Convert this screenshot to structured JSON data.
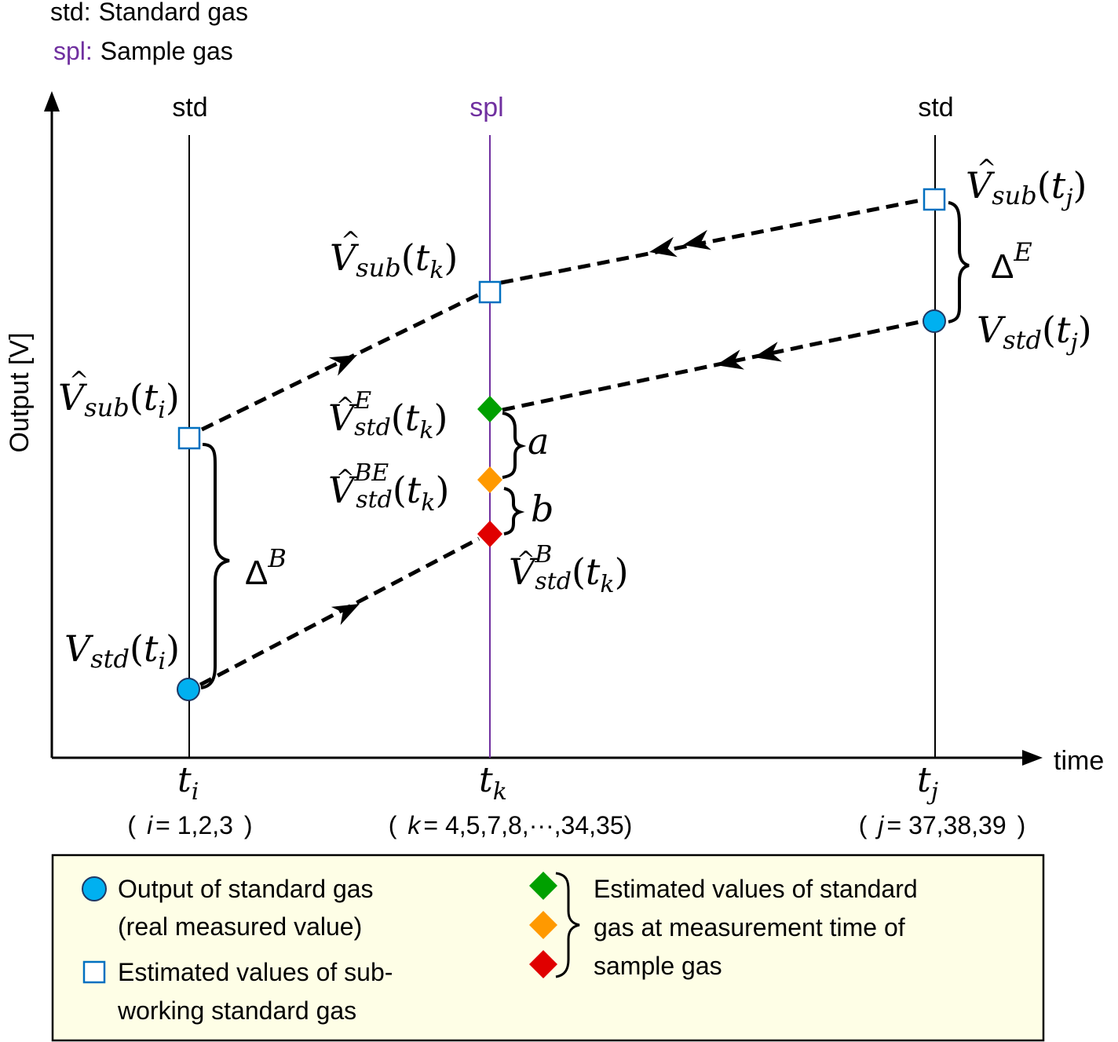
{
  "abbreviations": [
    {
      "abbr": "std",
      "separator": ":",
      "meaning": "Standard gas",
      "color": "#000000"
    },
    {
      "abbr": "spl",
      "separator": ":",
      "meaning": "Sample gas",
      "color": "#7030a0"
    }
  ],
  "y_axis_label": "Output [V]",
  "x_axis_label": "time",
  "columns": {
    "left": {
      "header": "std",
      "tick": "t",
      "tick_sub": "i",
      "range_var": "i",
      "range_values": "= 1,2,3"
    },
    "middle": {
      "header": "spl",
      "tick": "t",
      "tick_sub": "k",
      "range_var": "k",
      "range_values": "= 4,5,7,8,···,34,35"
    },
    "right": {
      "header": "std",
      "tick": "t",
      "tick_sub": "j",
      "range_var": "j",
      "range_values": "= 37,38,39"
    }
  },
  "point_labels": {
    "vsub_ti": {
      "base": "V",
      "hat": "^",
      "sub": "sub",
      "arg": "t",
      "arg_sub": "i"
    },
    "vstd_ti": {
      "base": "V",
      "sub": "std",
      "arg": "t",
      "arg_sub": "i"
    },
    "vsub_tk": {
      "base": "V",
      "hat": "^",
      "sub": "sub",
      "arg": "t",
      "arg_sub": "k"
    },
    "vstd_e_tk": {
      "base": "V",
      "hat": "^",
      "sup": "E",
      "sub": "std",
      "arg": "t",
      "arg_sub": "k"
    },
    "vstd_be_tk": {
      "base": "V",
      "hat": "^",
      "sup": "BE",
      "sub": "std",
      "arg": "t",
      "arg_sub": "k"
    },
    "vstd_b_tk": {
      "base": "V",
      "hat": "^",
      "sup": "B",
      "sub": "std",
      "arg": "t",
      "arg_sub": "k"
    },
    "vsub_tj": {
      "base": "V",
      "hat": "^",
      "sub": "sub",
      "arg": "t",
      "arg_sub": "j"
    },
    "vstd_tj": {
      "base": "V",
      "sub": "std",
      "arg": "t",
      "arg_sub": "j"
    }
  },
  "brace_labels": {
    "delta_b": {
      "base": "Δ",
      "sup": "B"
    },
    "delta_e": {
      "base": "Δ",
      "sup": "E"
    },
    "a": "a",
    "b": "b"
  },
  "legend": {
    "circle_text": [
      "Output of  standard gas",
      "(real measured value)"
    ],
    "square_text": [
      "Estimated values of  sub-",
      "working standard gas"
    ],
    "diamonds_text": [
      "Estimated values of standard",
      "gas at measurement time of",
      "sample gas"
    ]
  },
  "colors": {
    "circle_fill": "#00b0f0",
    "square_stroke": "#0070c0",
    "diamond_e": "#00a000",
    "diamond_be": "#ff9900",
    "diamond_b": "#e00000",
    "spl_purple": "#7030a0",
    "legend_bg": "#fefee6"
  }
}
